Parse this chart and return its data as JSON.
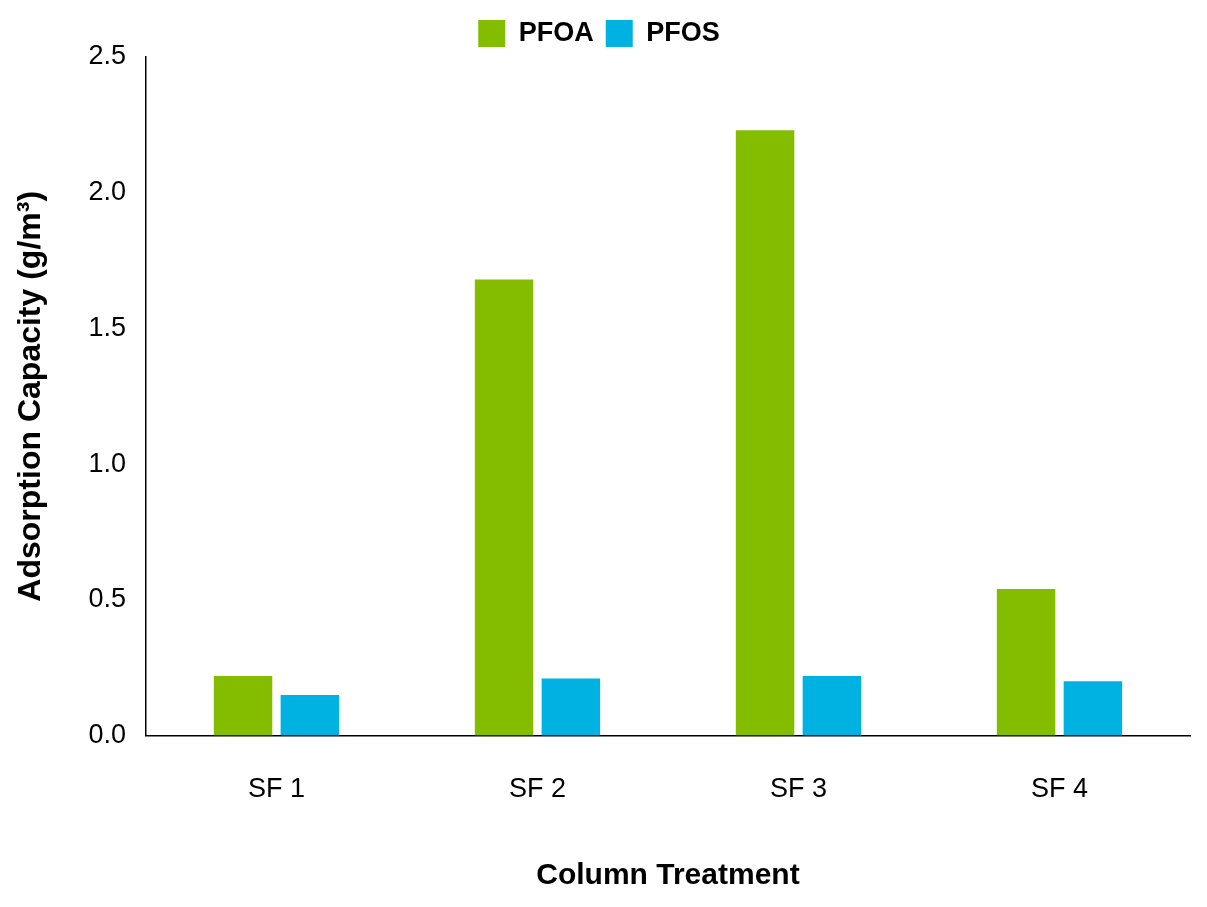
{
  "chart_data": {
    "type": "bar",
    "xlabel": "Column Treatment",
    "ylabel": "Adsorption Capacity (g/m³)",
    "categories": [
      "SF 1",
      "SF 2",
      "SF 3",
      "SF 4"
    ],
    "series": [
      {
        "name": "PFOA",
        "color": "#84bd00",
        "values": [
          0.22,
          1.68,
          2.23,
          0.54
        ]
      },
      {
        "name": "PFOS",
        "color": "#00b2e2",
        "values": [
          0.15,
          0.21,
          0.22,
          0.2
        ]
      }
    ],
    "ylim": [
      0,
      2.5
    ],
    "yticks": [
      {
        "value": 0,
        "label": "0.0"
      },
      0.5,
      {
        "value": 1,
        "label": "1.0"
      },
      1.5,
      {
        "value": 2,
        "label": "2.0"
      },
      2.5
    ],
    "grid": false,
    "legend": "top"
  }
}
